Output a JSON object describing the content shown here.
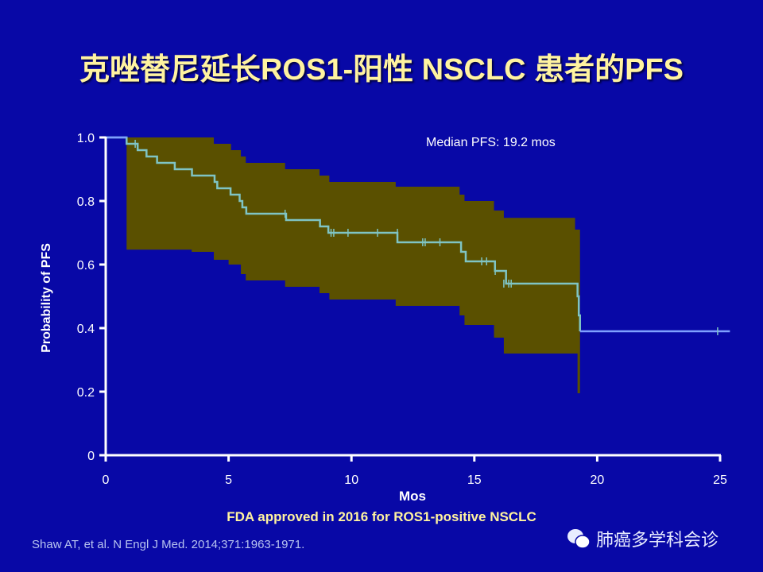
{
  "title": "克唑替尼延长ROS1-阳性 NSCLC 患者的PFS",
  "footnote": "FDA approved in 2016 for ROS1-positive NSCLC",
  "reference": "Shaw AT, et al. N Engl J Med. 2014;371:1963-1971.",
  "watermark": {
    "icon": "wechat-icon",
    "text": "肺癌多学科会诊"
  },
  "colors": {
    "background": "#0808a6",
    "curve": "#7fc4c4",
    "ci_band": "#5a5000",
    "tail": "#7fa0ff",
    "title": "#fff3a0"
  },
  "chart_data": {
    "type": "line",
    "subtype": "kaplan-meier step with confidence band",
    "xlabel": "Mos",
    "ylabel": "Probability of PFS",
    "xlim": [
      0,
      25
    ],
    "ylim": [
      0,
      1.0
    ],
    "xticks": [
      "0",
      "5",
      "10",
      "15",
      "20",
      "25"
    ],
    "yticks": [
      "0",
      "0.2",
      "0.4",
      "0.6",
      "0.8",
      "1.0"
    ],
    "annotation": "Median PFS: 19.2 mos",
    "grid": false,
    "survival": [
      [
        0,
        1.0
      ],
      [
        0.85,
        0.98
      ],
      [
        1.3,
        0.96
      ],
      [
        1.66,
        0.94
      ],
      [
        2.09,
        0.92
      ],
      [
        2.81,
        0.9
      ],
      [
        3.51,
        0.88
      ],
      [
        4.43,
        0.86
      ],
      [
        4.54,
        0.84
      ],
      [
        5.08,
        0.82
      ],
      [
        5.45,
        0.8
      ],
      [
        5.56,
        0.78
      ],
      [
        5.72,
        0.76
      ],
      [
        7.34,
        0.74
      ],
      [
        8.72,
        0.72
      ],
      [
        9.06,
        0.7
      ],
      [
        11.87,
        0.67
      ],
      [
        14.46,
        0.64
      ],
      [
        14.65,
        0.61
      ],
      [
        15.84,
        0.58
      ],
      [
        16.29,
        0.54
      ],
      [
        19.2,
        0.5
      ],
      [
        19.25,
        0.44
      ],
      [
        19.3,
        0.39
      ],
      [
        25.4,
        0.39
      ]
    ],
    "censored": [
      [
        1.2,
        0.98
      ],
      [
        7.3,
        0.76
      ],
      [
        9.17,
        0.7
      ],
      [
        9.28,
        0.7
      ],
      [
        9.86,
        0.7
      ],
      [
        11.06,
        0.7
      ],
      [
        11.87,
        0.7
      ],
      [
        12.9,
        0.67
      ],
      [
        13.0,
        0.67
      ],
      [
        13.6,
        0.67
      ],
      [
        15.3,
        0.61
      ],
      [
        15.5,
        0.61
      ],
      [
        15.85,
        0.58
      ],
      [
        16.2,
        0.54
      ],
      [
        16.4,
        0.54
      ],
      [
        16.5,
        0.54
      ],
      [
        24.9,
        0.39
      ]
    ],
    "ci_upper": [
      [
        0.85,
        1.0
      ],
      [
        4.4,
        0.98
      ],
      [
        5.1,
        0.96
      ],
      [
        5.5,
        0.94
      ],
      [
        5.7,
        0.92
      ],
      [
        7.3,
        0.9
      ],
      [
        8.7,
        0.88
      ],
      [
        9.1,
        0.86
      ],
      [
        11.8,
        0.845
      ],
      [
        14.4,
        0.82
      ],
      [
        14.6,
        0.8
      ],
      [
        15.8,
        0.77
      ],
      [
        16.2,
        0.747
      ],
      [
        19.1,
        0.71
      ],
      [
        19.3,
        0.7
      ]
    ],
    "ci_lower": [
      [
        0.85,
        0.647
      ],
      [
        3.5,
        0.64
      ],
      [
        4.4,
        0.615
      ],
      [
        5.0,
        0.6
      ],
      [
        5.5,
        0.57
      ],
      [
        5.7,
        0.55
      ],
      [
        7.3,
        0.53
      ],
      [
        8.7,
        0.51
      ],
      [
        9.1,
        0.49
      ],
      [
        11.8,
        0.47
      ],
      [
        14.4,
        0.44
      ],
      [
        14.6,
        0.41
      ],
      [
        15.8,
        0.37
      ],
      [
        16.2,
        0.32
      ],
      [
        19.2,
        0.195
      ],
      [
        19.3,
        0.195
      ]
    ]
  }
}
